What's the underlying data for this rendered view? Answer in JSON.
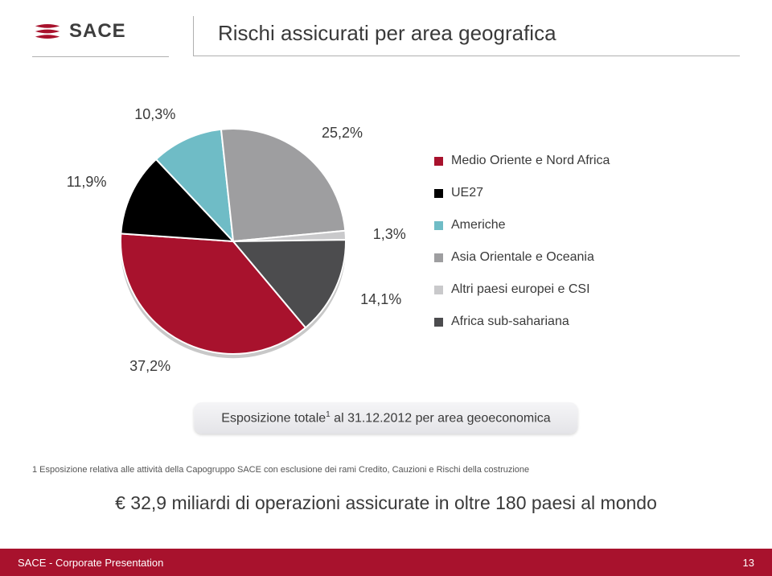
{
  "brand": {
    "name": "SACE",
    "logo_color": "#a8122d",
    "text_color": "#3d3d3d"
  },
  "title": "Rischi assicurati per area geografica",
  "chart": {
    "type": "pie",
    "background_color": "#ffffff",
    "slice_border_color": "#ffffff",
    "slice_border_width": 2,
    "extrusion_color": "#606062",
    "series": [
      {
        "label": "Medio Oriente e Nord Africa",
        "value": 37.2,
        "display": "37,2%",
        "color": "#a8122d"
      },
      {
        "label": "UE27",
        "value": 11.9,
        "display": "11,9%",
        "color": "#000000"
      },
      {
        "label": "Americhe",
        "value": 10.3,
        "display": "10,3%",
        "color": "#6fbcc6"
      },
      {
        "label": "Asia Orientale e Oceania",
        "value": 25.2,
        "display": "25,2%",
        "color": "#9e9ea0"
      },
      {
        "label": "Altri paesi europei e CSI",
        "value": 1.3,
        "display": "1,3%",
        "color": "#c9c9cb"
      },
      {
        "label": "Africa sub-sahariana",
        "value": 14.1,
        "display": "14,1%",
        "color": "#4c4c4e"
      }
    ],
    "start_angle_deg": 50,
    "label_fontsize": 18,
    "legend_fontsize": 16,
    "legend_gap": 22
  },
  "caption": {
    "prefix": "Esposizione totale",
    "sup": "1",
    "suffix": " al 31.12.2012  per area geoeconomica",
    "pill_bg_top": "#f5f5f7",
    "pill_bg_bottom": "#e4e4e8"
  },
  "footnote": "1  Esposizione relativa alle attività della Capogruppo  SACE con esclusione dei rami Credito, Cauzioni e Rischi della costruzione",
  "headline": "€ 32,9 miliardi di operazioni assicurate in oltre 180 paesi al mondo",
  "footer": {
    "text": "SACE - Corporate Presentation",
    "page": "13",
    "bg": "#a8122d"
  }
}
